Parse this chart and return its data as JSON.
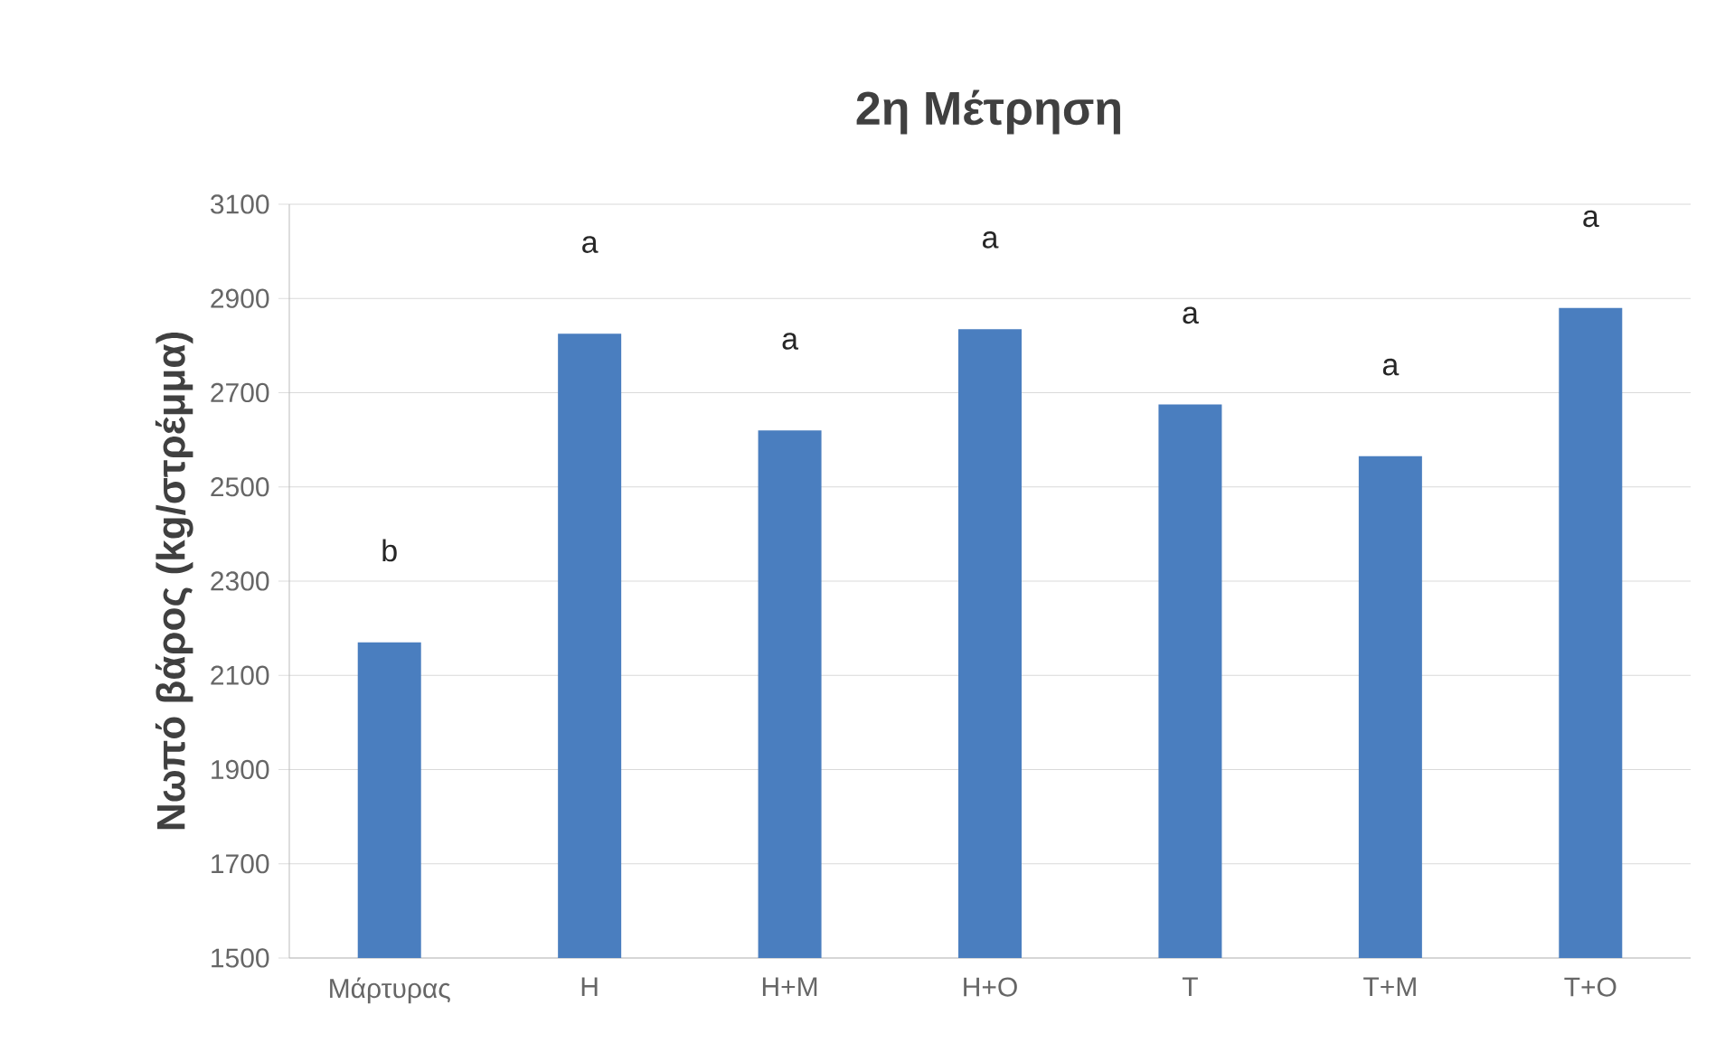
{
  "chart_data": {
    "type": "bar",
    "title": "2η Μέτρηση",
    "ylabel": "Νωπό βάρος (kg/στρέμμα)",
    "categories": [
      "Μάρτυρας",
      "Η",
      "Η+Μ",
      "Η+Ο",
      "Τ",
      "Τ+Μ",
      "Τ+Ο"
    ],
    "values": [
      2170,
      2825,
      2620,
      2835,
      2675,
      2565,
      2880
    ],
    "color": "#4a7ebf",
    "ylim": [
      1500,
      3100
    ],
    "yticks": [
      1500,
      1700,
      1900,
      2100,
      2300,
      2500,
      2700,
      2900,
      3100
    ],
    "grid": "y",
    "annotations": [
      "b",
      "a",
      "a",
      "a",
      "a",
      "a",
      "a"
    ]
  }
}
